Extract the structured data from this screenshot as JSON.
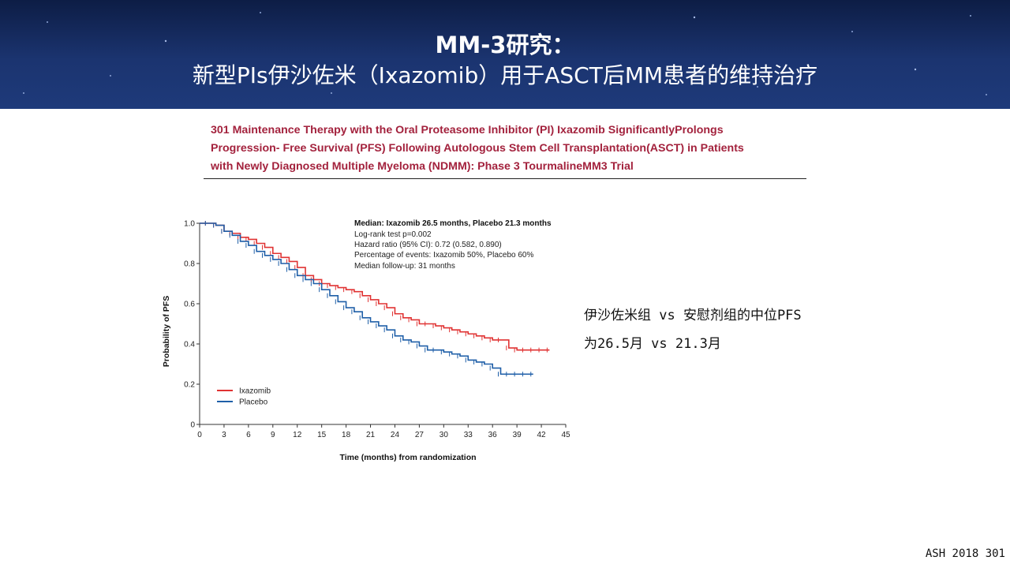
{
  "slide": {
    "title_line1": "MM-3研究：",
    "title_line2": "新型PIs伊沙佐米（Ixazomib）用于ASCT后MM患者的维持治疗",
    "reference": [
      "301 Maintenance Therapy with the Oral Proteasome Inhibitor (PI) Ixazomib SignificantlyProlongs",
      "Progression- Free Survival (PFS) Following Autologous Stem Cell Transplantation(ASCT) in Patients",
      "with Newly Diagnosed Multiple Myeloma (NDMM): Phase 3 TourmalineMM3 Trial"
    ],
    "side_note": [
      "伊沙佐米组 vs 安慰剂组的中位PFS",
      "为26.5月 vs 21.3月"
    ],
    "footer": "ASH 2018 301"
  },
  "chart_data": {
    "type": "line",
    "xlabel": "Time (months) from randomization",
    "ylabel": "Probability of PFS",
    "xlim": [
      0,
      45
    ],
    "ylim": [
      0,
      1.0
    ],
    "xticks": [
      0,
      3,
      6,
      9,
      12,
      15,
      18,
      21,
      24,
      27,
      30,
      33,
      36,
      39,
      42,
      45
    ],
    "yticks": [
      0,
      0.2,
      0.4,
      0.6,
      0.8,
      1.0
    ],
    "grid": false,
    "legend_position": "bottom-left",
    "annotation": [
      "Median: Ixazomib 26.5 months, Placebo 21.3 months",
      "Log-rank test p=0.002",
      "Hazard ratio (95% CI): 0.72 (0.582, 0.890)",
      "Percentage of events: Ixazomib 50%, Placebo 60%",
      "Median follow-up: 31 months"
    ],
    "series": [
      {
        "name": "Ixazomib",
        "color": "#e03333",
        "x": [
          0,
          1,
          2,
          3,
          4,
          5,
          6,
          7,
          8,
          9,
          10,
          11,
          12,
          13,
          14,
          15,
          16,
          17,
          18,
          19,
          20,
          21,
          22,
          23,
          24,
          25,
          26,
          27,
          28,
          29,
          30,
          31,
          32,
          33,
          34,
          35,
          36,
          37,
          38,
          39,
          40,
          41,
          42,
          43
        ],
        "y": [
          1.0,
          1.0,
          0.99,
          0.96,
          0.95,
          0.93,
          0.92,
          0.9,
          0.88,
          0.85,
          0.83,
          0.81,
          0.78,
          0.74,
          0.72,
          0.7,
          0.69,
          0.68,
          0.67,
          0.66,
          0.64,
          0.62,
          0.6,
          0.58,
          0.55,
          0.53,
          0.52,
          0.5,
          0.5,
          0.49,
          0.48,
          0.47,
          0.46,
          0.45,
          0.44,
          0.43,
          0.42,
          0.42,
          0.38,
          0.37,
          0.37,
          0.37,
          0.37,
          0.37
        ]
      },
      {
        "name": "Placebo",
        "color": "#1f5fa8",
        "x": [
          0,
          1,
          2,
          3,
          4,
          5,
          6,
          7,
          8,
          9,
          10,
          11,
          12,
          13,
          14,
          15,
          16,
          17,
          18,
          19,
          20,
          21,
          22,
          23,
          24,
          25,
          26,
          27,
          28,
          29,
          30,
          31,
          32,
          33,
          34,
          35,
          36,
          37,
          38,
          39,
          40,
          41
        ],
        "y": [
          1.0,
          1.0,
          0.99,
          0.96,
          0.94,
          0.91,
          0.89,
          0.86,
          0.84,
          0.82,
          0.8,
          0.77,
          0.74,
          0.72,
          0.7,
          0.67,
          0.64,
          0.61,
          0.58,
          0.56,
          0.53,
          0.51,
          0.49,
          0.47,
          0.44,
          0.42,
          0.41,
          0.39,
          0.37,
          0.37,
          0.36,
          0.35,
          0.34,
          0.32,
          0.31,
          0.3,
          0.28,
          0.25,
          0.25,
          0.25,
          0.25,
          0.25
        ]
      }
    ]
  }
}
